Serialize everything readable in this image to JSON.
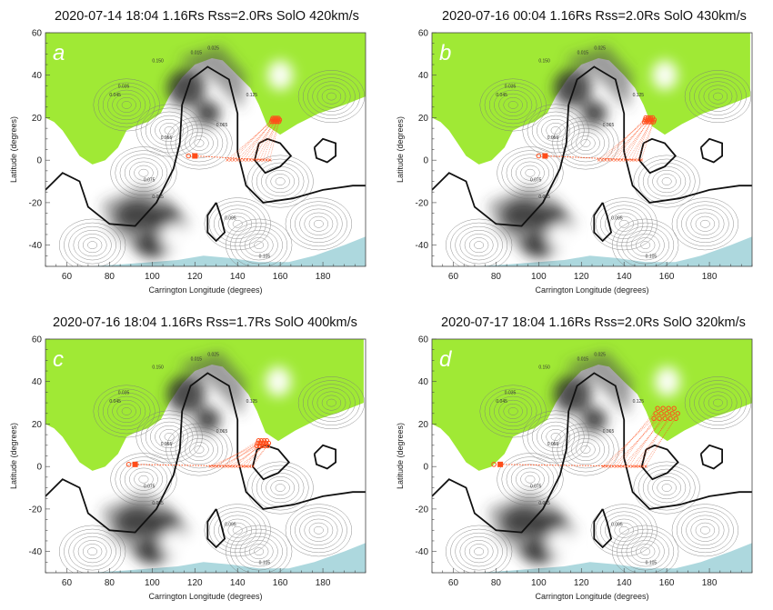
{
  "figure": {
    "colors": {
      "open_field_north": "#9be82a",
      "open_field_south": "#9fd1d8",
      "neutral_line": "#111111",
      "contour": "#7a7a7a",
      "connectivity": "#ff4d1a",
      "background": "#ffffff"
    }
  },
  "chart_data": [
    {
      "type": "contour",
      "letter": "a",
      "title": "2020-07-14 18:04 1.16Rs   Rss=2.0Rs SolO 420km/s",
      "xlabel": "Carrington Longitude (degrees)",
      "ylabel": "Latitude (degrees)",
      "xlim": [
        50,
        200
      ],
      "ylim": [
        -50,
        60
      ],
      "xticks": [
        60,
        80,
        100,
        120,
        140,
        160,
        180
      ],
      "yticks": [
        -40,
        -20,
        0,
        20,
        40,
        60
      ],
      "solo_subpoint": {
        "lon": 120,
        "lat": 2
      },
      "trace_end_lon": 155,
      "footpoint_cluster": {
        "lon": 158,
        "lat": 19
      },
      "spread": 4,
      "contour_labels": [
        "0.015",
        "0.025",
        "0.035",
        "0.045",
        "0.055",
        "0.065",
        "0.075",
        "0.085",
        "0.095",
        "0.105",
        "0.125",
        "0.150"
      ]
    },
    {
      "type": "contour",
      "letter": "b",
      "title": "2020-07-16 00:04 1.16Rs   Rss=2.0Rs SolO 430km/s",
      "xlabel": "Carrington Longitude (degrees)",
      "ylabel": "Latitude (degrees)",
      "xlim": [
        50,
        200
      ],
      "ylim": [
        -50,
        60
      ],
      "xticks": [
        60,
        80,
        100,
        120,
        140,
        160,
        180
      ],
      "yticks": [
        -40,
        -20,
        0,
        20,
        40,
        60
      ],
      "solo_subpoint": {
        "lon": 103,
        "lat": 2
      },
      "trace_end_lon": 148,
      "footpoint_cluster": {
        "lon": 152,
        "lat": 19
      },
      "spread": 5,
      "contour_labels": [
        "0.015",
        "0.025",
        "0.035",
        "0.045",
        "0.055",
        "0.065",
        "0.075",
        "0.085",
        "0.095",
        "0.105",
        "0.125",
        "0.150"
      ]
    },
    {
      "type": "contour",
      "letter": "c",
      "title": "2020-07-16 18:04 1.16Rs   Rss=1.7Rs SolO 400km/s",
      "xlabel": "Carrington Longitude (degrees)",
      "ylabel": "Latitude (degrees)",
      "xlim": [
        50,
        200
      ],
      "ylim": [
        -50,
        60
      ],
      "xticks": [
        60,
        80,
        100,
        120,
        140,
        160,
        180
      ],
      "yticks": [
        -40,
        -20,
        0,
        20,
        40,
        60
      ],
      "solo_subpoint": {
        "lon": 92,
        "lat": 1
      },
      "trace_end_lon": 147,
      "footpoint_cluster": {
        "lon": 152,
        "lat": 11
      },
      "spread": 6,
      "contour_labels": [
        "0.015",
        "0.025",
        "0.035",
        "0.045",
        "0.055",
        "0.065",
        "0.075",
        "0.085",
        "0.095",
        "0.105",
        "0.125",
        "0.150"
      ]
    },
    {
      "type": "contour",
      "letter": "d",
      "title": "2020-07-17 18:04 1.16Rs   Rss=2.0Rs SolO 320km/s",
      "xlabel": "Carrington Longitude (degrees)",
      "ylabel": "Latitude (degrees)",
      "xlim": [
        50,
        200
      ],
      "ylim": [
        -50,
        60
      ],
      "xticks": [
        60,
        80,
        100,
        120,
        140,
        160,
        180
      ],
      "yticks": [
        -40,
        -20,
        0,
        20,
        40,
        60
      ],
      "solo_subpoint": {
        "lon": 82,
        "lat": 1
      },
      "trace_end_lon": 150,
      "footpoint_cluster": {
        "lon": 160,
        "lat": 25
      },
      "spread": 12,
      "contour_labels": [
        "0.015",
        "0.025",
        "0.035",
        "0.045",
        "0.055",
        "0.065",
        "0.075",
        "0.085",
        "0.095",
        "0.105",
        "0.125",
        "0.150"
      ]
    }
  ]
}
